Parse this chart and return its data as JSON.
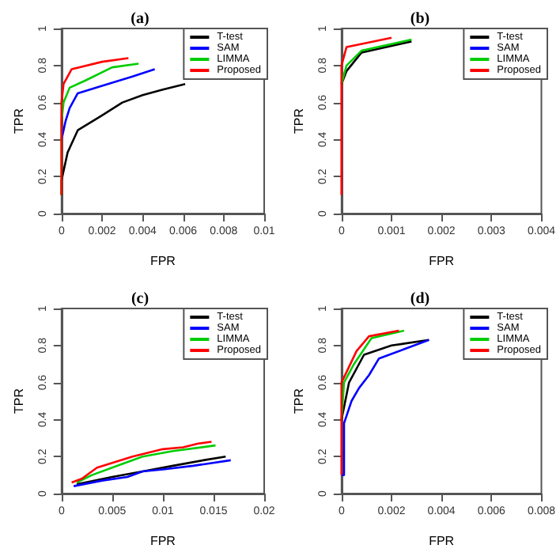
{
  "chart_data": [
    {
      "type": "line",
      "title": "(a)",
      "xlabel": "FPR",
      "ylabel": "TPR",
      "xlim": [
        0,
        0.01
      ],
      "xticks": [
        0,
        0.002,
        0.004,
        0.006,
        0.008,
        0.01
      ],
      "ylim": [
        0,
        1
      ],
      "yticks": [
        0,
        0.2,
        0.4,
        0.6,
        0.8,
        1
      ],
      "legend": "top right",
      "marker": "none",
      "grid": false,
      "series": [
        {
          "name": "T-test",
          "color": "#000000",
          "x": [
            0,
            0,
            0.0003,
            0.0008,
            0.002,
            0.003,
            0.004,
            0.005,
            0.0061
          ],
          "values": [
            0.1,
            0.18,
            0.33,
            0.45,
            0.53,
            0.6,
            0.64,
            0.67,
            0.7
          ]
        },
        {
          "name": "SAM",
          "color": "#0000ff",
          "x": [
            0,
            0.0002,
            0.0004,
            0.0008,
            0.002,
            0.0035,
            0.0046
          ],
          "values": [
            0.4,
            0.5,
            0.57,
            0.65,
            0.69,
            0.74,
            0.78
          ]
        },
        {
          "name": "LIMMA",
          "color": "#00cc00",
          "x": [
            0,
            0,
            0.0001,
            0.0004,
            0.0012,
            0.0025,
            0.0038
          ],
          "values": [
            0.1,
            0.5,
            0.6,
            0.68,
            0.72,
            0.79,
            0.81
          ]
        },
        {
          "name": "Proposed",
          "color": "#ff0000",
          "x": [
            0,
            0,
            0.0001,
            0.0005,
            0.002,
            0.0033
          ],
          "values": [
            0.1,
            0.6,
            0.7,
            0.78,
            0.82,
            0.84
          ]
        }
      ]
    },
    {
      "type": "line",
      "title": "(b)",
      "xlabel": "FPR",
      "ylabel": "TPR",
      "xlim": [
        0,
        0.004
      ],
      "xticks": [
        0,
        0.001,
        0.002,
        0.003,
        0.004
      ],
      "ylim": [
        0,
        1
      ],
      "yticks": [
        0,
        0.2,
        0.4,
        0.6,
        0.8,
        1
      ],
      "legend": "top right",
      "marker": "none",
      "grid": false,
      "series": [
        {
          "name": "T-test",
          "color": "#000000",
          "x": [
            0,
            0.0001,
            0.0004,
            0.0014
          ],
          "values": [
            0.7,
            0.77,
            0.87,
            0.93
          ]
        },
        {
          "name": "SAM",
          "color": "#0000ff"
        },
        {
          "name": "LIMMA",
          "color": "#00cc00",
          "x": [
            0,
            0.0001,
            0.0004,
            0.0014
          ],
          "values": [
            0.7,
            0.8,
            0.88,
            0.94
          ]
        },
        {
          "name": "Proposed",
          "color": "#ff0000",
          "x": [
            0,
            0,
            0.0001,
            0.001
          ],
          "values": [
            0.1,
            0.8,
            0.9,
            0.95
          ]
        }
      ]
    },
    {
      "type": "line",
      "title": "(c)",
      "xlabel": "FPR",
      "ylabel": "TPR",
      "xlim": [
        0,
        0.02
      ],
      "xticks": [
        0,
        0.005,
        0.01,
        0.015,
        0.02
      ],
      "ylim": [
        0,
        1
      ],
      "yticks": [
        0,
        0.2,
        0.4,
        0.6,
        0.8,
        1
      ],
      "legend": "top right",
      "marker": "none",
      "grid": false,
      "series": [
        {
          "name": "T-test",
          "color": "#000000",
          "x": [
            0.0015,
            0.005,
            0.008,
            0.011,
            0.014,
            0.0162
          ],
          "values": [
            0.05,
            0.09,
            0.12,
            0.15,
            0.18,
            0.2
          ]
        },
        {
          "name": "SAM",
          "color": "#0000ff",
          "x": [
            0.0012,
            0.004,
            0.0065,
            0.008,
            0.01,
            0.013,
            0.0167
          ],
          "values": [
            0.04,
            0.07,
            0.09,
            0.12,
            0.13,
            0.15,
            0.18
          ]
        },
        {
          "name": "LIMMA",
          "color": "#00cc00",
          "x": [
            0.0015,
            0.003,
            0.006,
            0.008,
            0.011,
            0.0152
          ],
          "values": [
            0.06,
            0.1,
            0.16,
            0.2,
            0.23,
            0.26
          ]
        },
        {
          "name": "Proposed",
          "color": "#ff0000",
          "x": [
            0.001,
            0.002,
            0.0035,
            0.007,
            0.01,
            0.012,
            0.0135,
            0.0148
          ],
          "values": [
            0.06,
            0.08,
            0.14,
            0.2,
            0.24,
            0.25,
            0.27,
            0.28
          ]
        }
      ]
    },
    {
      "type": "line",
      "title": "(d)",
      "xlabel": "FPR",
      "ylabel": "TPR",
      "xlim": [
        0,
        0.008
      ],
      "xticks": [
        0,
        0.002,
        0.004,
        0.006,
        0.008
      ],
      "ylim": [
        0,
        1
      ],
      "yticks": [
        0,
        0.2,
        0.4,
        0.6,
        0.8,
        1
      ],
      "legend": "top right",
      "marker": "none",
      "grid": false,
      "series": [
        {
          "name": "T-test",
          "color": "#000000",
          "x": [
            0,
            0.0003,
            0.0009,
            0.002,
            0.0035
          ],
          "values": [
            0.4,
            0.6,
            0.75,
            0.8,
            0.83
          ]
        },
        {
          "name": "SAM",
          "color": "#0000ff",
          "x": [
            0,
            0.0001,
            0.0001,
            0.0004,
            0.0007,
            0.0011,
            0.0015,
            0.0025,
            0.0035
          ],
          "values": [
            0.1,
            0.1,
            0.38,
            0.5,
            0.57,
            0.64,
            0.73,
            0.78,
            0.83
          ]
        },
        {
          "name": "LIMMA",
          "color": "#00cc00",
          "x": [
            0,
            0.0001,
            0.0005,
            0.0012,
            0.0025
          ],
          "values": [
            0.4,
            0.6,
            0.7,
            0.84,
            0.88
          ]
        },
        {
          "name": "Proposed",
          "color": "#ff0000",
          "x": [
            0,
            0,
            0.0006,
            0.0011,
            0.0023
          ],
          "values": [
            0.1,
            0.6,
            0.77,
            0.85,
            0.88
          ]
        }
      ]
    }
  ]
}
